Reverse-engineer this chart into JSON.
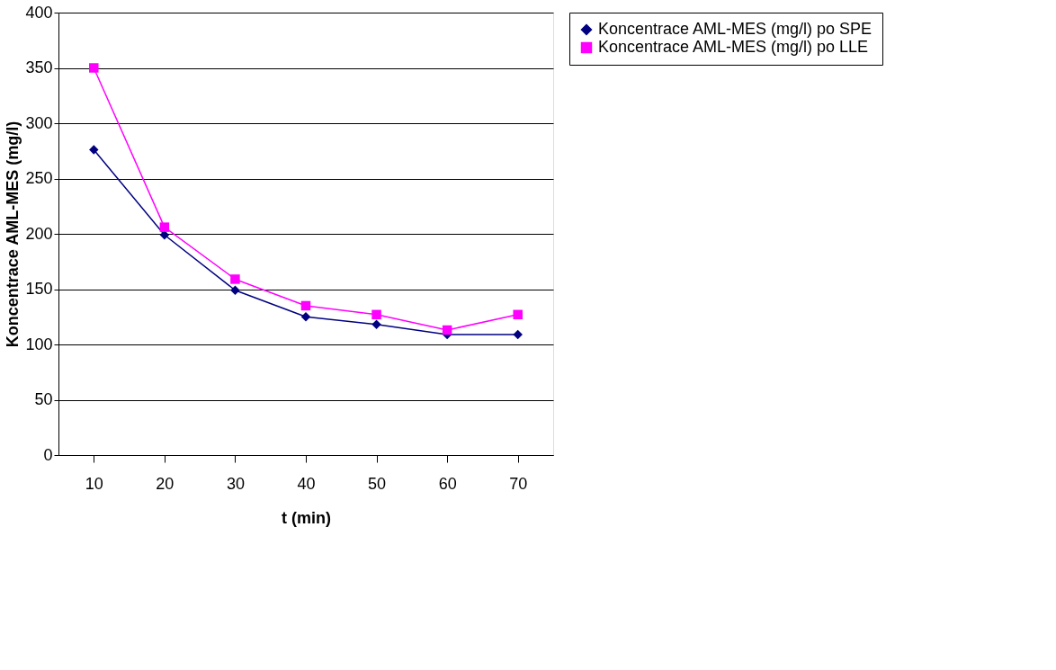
{
  "chart_data": {
    "type": "line",
    "xlabel": "t (min)",
    "ylabel": "Koncentrace AML-MES (mg/l)",
    "categories": [
      "10",
      "20",
      "30",
      "40",
      "50",
      "60",
      "70"
    ],
    "series": [
      {
        "name": "Koncentrace AML-MES (mg/l) po SPE",
        "color": "#000080",
        "marker": "diamond",
        "values": [
          276,
          199,
          149,
          125,
          118,
          109,
          109
        ]
      },
      {
        "name": "Koncentrace AML-MES (mg/l) po LLE",
        "color": "#ff00ff",
        "marker": "square",
        "values": [
          350,
          206,
          159,
          135,
          127,
          113,
          127
        ]
      }
    ],
    "ylim": [
      0,
      400
    ],
    "yticks": [
      0,
      50,
      100,
      150,
      200,
      250,
      300,
      350,
      400
    ],
    "grid": "y",
    "legend": "right",
    "line_style": "solid"
  }
}
